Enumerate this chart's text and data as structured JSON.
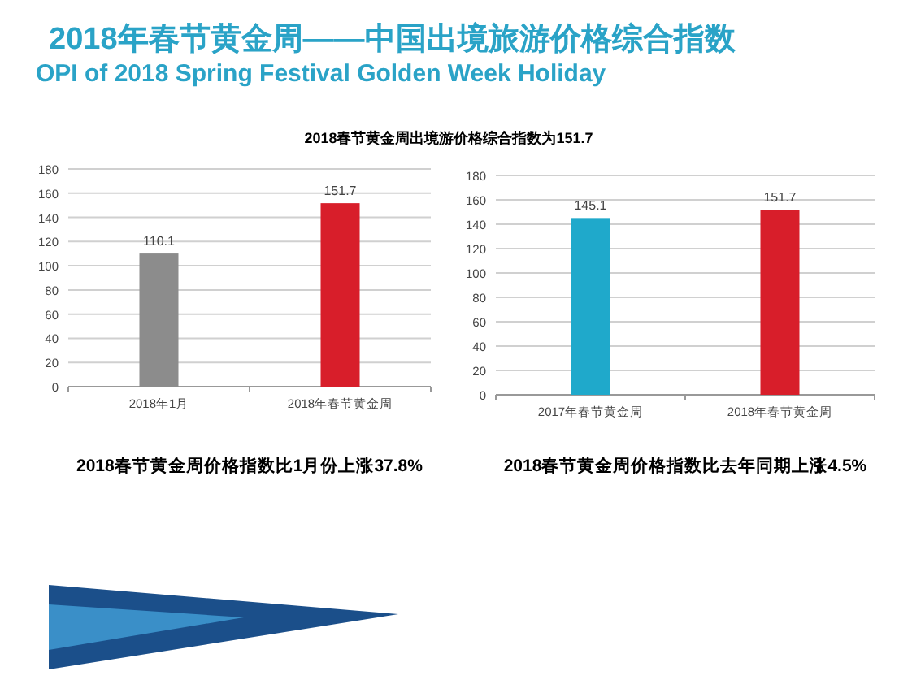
{
  "chart_data": [
    {
      "type": "bar",
      "title": "2018年春节黄金周——中国出境旅游价格综合指数",
      "subtitle": "OPI of 2018 Spring Festival Golden Week Holiday",
      "annotations": [
        "2018春节黄金周出境游价格综合指数为151.7",
        "2018春节黄金周价格指数比1月份上涨37.8%"
      ],
      "categories": [
        "2018年1月",
        "2018年春节黄金周"
      ],
      "values": [
        110.1,
        151.7
      ],
      "colors": [
        "#8c8c8c",
        "#d81e2a"
      ],
      "ylim": [
        0,
        180
      ],
      "yticks": [
        0,
        20,
        40,
        60,
        80,
        100,
        120,
        140,
        160,
        180
      ],
      "grid": "y",
      "data_labels": true
    },
    {
      "type": "bar",
      "annotations": [
        "2018春节黄金周价格指数比去年同期上涨4.5%"
      ],
      "categories": [
        "2017年春节黄金周",
        "2018年春节黄金周"
      ],
      "values": [
        145.1,
        151.7
      ],
      "colors": [
        "#1fa9cb",
        "#d81e2a"
      ],
      "ylim": [
        0,
        180
      ],
      "yticks": [
        0,
        20,
        40,
        60,
        80,
        100,
        120,
        140,
        160,
        180
      ],
      "grid": "y",
      "data_labels": true
    }
  ]
}
